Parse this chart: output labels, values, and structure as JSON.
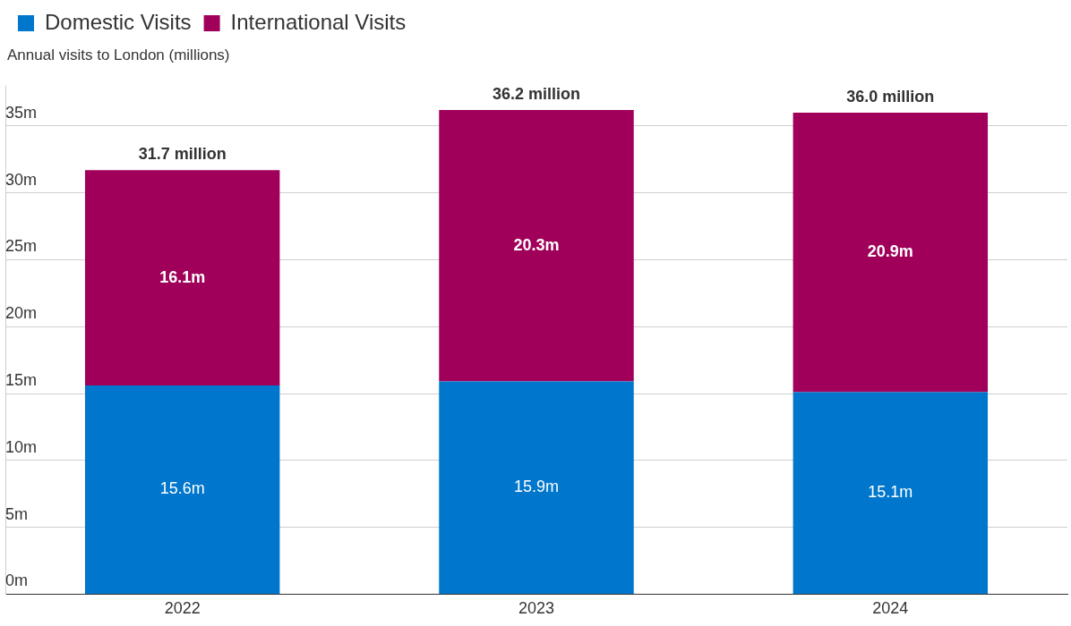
{
  "chart_data": {
    "type": "bar",
    "stacked": true,
    "ylabel": "Annual visits to London (millions)",
    "categories": [
      "2022",
      "2023",
      "2024"
    ],
    "series": [
      {
        "name": "Domestic Visits",
        "color": "#0077cc",
        "values": [
          15.6,
          15.9,
          15.1
        ],
        "value_labels": [
          "15.6m",
          "15.9m",
          "15.1m"
        ]
      },
      {
        "name": "International Visits",
        "color": "#a0005a",
        "values": [
          16.1,
          20.3,
          20.9
        ],
        "value_labels": [
          "16.1m",
          "20.3m",
          "20.9m"
        ]
      }
    ],
    "totals": [
      "31.7 million",
      "36.2 million",
      "36.0 million"
    ],
    "ylim": [
      0,
      38
    ],
    "yticks": [
      {
        "value": 0,
        "label": "0m"
      },
      {
        "value": 5,
        "label": "5m"
      },
      {
        "value": 10,
        "label": "10m"
      },
      {
        "value": 15,
        "label": "15m"
      },
      {
        "value": 20,
        "label": "20m"
      },
      {
        "value": 25,
        "label": "25m"
      },
      {
        "value": 30,
        "label": "30m"
      },
      {
        "value": 35,
        "label": "35m"
      }
    ],
    "grid": "y",
    "legend": "top left"
  }
}
